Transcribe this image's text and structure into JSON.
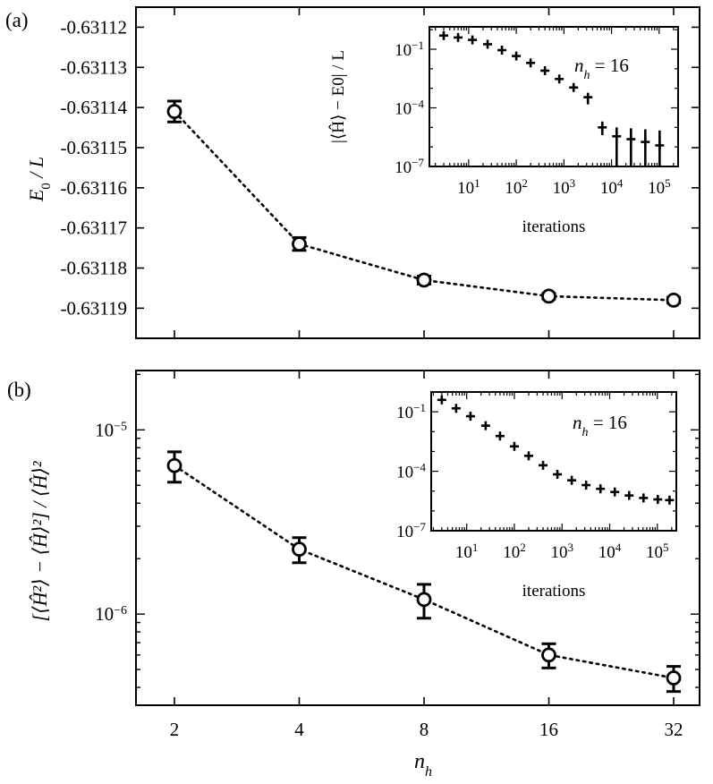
{
  "chart_data": [
    {
      "panel": "(a)",
      "type": "line",
      "style": "dotted line with open circle markers and error bars",
      "xlabel_var": "n",
      "xlabel_sub": "h",
      "x_scale": "log2",
      "x": [
        2,
        4,
        8,
        16,
        32
      ],
      "x_tick_labels": [
        "2",
        "4",
        "8",
        "16",
        "32"
      ],
      "ylabel_var": "E",
      "ylabel_sub": "0",
      "ylabel_tail": " / L",
      "y": [
        -0.631141,
        -0.631174,
        -0.631183,
        -0.631187,
        -0.631188
      ],
      "yerr": [
        2.6e-06,
        1.6e-06,
        1e-06,
        7e-07,
        7e-07
      ],
      "ylim": [
        -0.6311975,
        -0.631115
      ],
      "y_ticks": [
        -0.63112,
        -0.63113,
        -0.63114,
        -0.63115,
        -0.63116,
        -0.63117,
        -0.63118,
        -0.63119
      ],
      "y_tick_labels": [
        "-0.63112",
        "-0.63113",
        "-0.63114",
        "-0.63115",
        "-0.63116",
        "-0.63117",
        "-0.63118",
        "-0.63119"
      ],
      "inset": {
        "type": "scatter",
        "marker": "plus with error bars",
        "x_scale": "log10",
        "xlabel": "iterations",
        "ylabel": "|⟨Ĥ⟩ − E0| / L",
        "annotation_var": "n",
        "annotation_sub": "h",
        "annotation_tail": " = 16",
        "x": [
          3,
          6,
          12,
          25,
          50,
          100,
          200,
          400,
          800,
          1600,
          3200,
          6400,
          12800,
          25600,
          51200,
          102400
        ],
        "y": [
          0.5,
          0.4,
          0.3,
          0.18,
          0.09,
          0.045,
          0.02,
          0.008,
          0.003,
          0.0011,
          0.00035,
          1e-05,
          3.5e-06,
          2.5e-06,
          1.8e-06,
          1.2e-06
        ],
        "y_upper": [
          0.5,
          0.4,
          0.3,
          0.18,
          0.09,
          0.045,
          0.02,
          0.008,
          0.003,
          0.0011,
          0.00035,
          2e-05,
          1e-05,
          9e-06,
          8e-06,
          7e-06
        ],
        "y_lower": [
          0.5,
          0.4,
          0.3,
          0.18,
          0.09,
          0.045,
          0.02,
          0.008,
          0.003,
          0.0011,
          0.00015,
          4e-06,
          1e-07,
          1e-07,
          1e-07,
          1e-07
        ],
        "xlim": [
          1.5,
          250000
        ],
        "ylim": [
          1e-07,
          1.4
        ],
        "x_ticks": [
          10,
          100,
          1000,
          10000,
          100000
        ],
        "x_tick_bases": [
          "10",
          "10",
          "10",
          "10",
          "10"
        ],
        "x_tick_exps": [
          "1",
          "2",
          "3",
          "4",
          "5"
        ],
        "y_ticks": [
          0.1,
          0.0001,
          1e-07
        ],
        "y_tick_bases": [
          "10",
          "10",
          "10"
        ],
        "y_tick_exps": [
          "−1",
          "−4",
          "−7"
        ]
      }
    },
    {
      "panel": "(b)",
      "type": "line",
      "style": "dotted line with open circle markers and error bars",
      "xlabel_var": "n",
      "xlabel_sub": "h",
      "x_scale": "log2",
      "x": [
        2,
        4,
        8,
        16,
        32
      ],
      "x_tick_labels": [
        "2",
        "4",
        "8",
        "16",
        "32"
      ],
      "ylabel": "[⟨Ĥ²⟩ − ⟨Ĥ⟩²] / ⟨Ĥ⟩²",
      "y_scale": "log10",
      "y": [
        6.4e-06,
        2.25e-06,
        1.2e-06,
        6e-07,
        4.5e-07
      ],
      "y_upper": [
        7.6e-06,
        2.6e-06,
        1.45e-06,
        6.9e-07,
        5.2e-07
      ],
      "y_lower": [
        5.2e-06,
        1.9e-06,
        9.5e-07,
        5.1e-07,
        3.8e-07
      ],
      "ylim": [
        3.2e-07,
        2.1e-05
      ],
      "y_ticks": [
        1e-05,
        1e-06
      ],
      "y_tick_bases": [
        "10",
        "10"
      ],
      "y_tick_exps": [
        "−5",
        "−6"
      ],
      "inset": {
        "type": "scatter",
        "marker": "plus",
        "x_scale": "log10",
        "xlabel": "iterations",
        "annotation_var": "n",
        "annotation_sub": "h",
        "annotation_tail": " = 16",
        "x": [
          3,
          6,
          12,
          25,
          50,
          100,
          200,
          400,
          800,
          1600,
          3200,
          6400,
          12800,
          25600,
          51200,
          102400,
          180000
        ],
        "y": [
          0.4,
          0.15,
          0.06,
          0.02,
          0.006,
          0.0018,
          0.0006,
          0.0002,
          7e-05,
          3.5e-05,
          2e-05,
          1.3e-05,
          9e-06,
          6e-06,
          4.5e-06,
          3.8e-06,
          3.5e-06
        ],
        "xlim": [
          1.8,
          250000
        ],
        "ylim": [
          1e-07,
          1.0
        ],
        "x_ticks": [
          10,
          100,
          1000,
          10000,
          100000
        ],
        "x_tick_bases": [
          "10",
          "10",
          "10",
          "10",
          "10"
        ],
        "x_tick_exps": [
          "1",
          "2",
          "3",
          "4",
          "5"
        ],
        "y_ticks": [
          0.1,
          0.0001,
          1e-07
        ],
        "y_tick_bases": [
          "10",
          "10",
          "10"
        ],
        "y_tick_exps": [
          "−1",
          "−4",
          "−7"
        ]
      }
    }
  ]
}
